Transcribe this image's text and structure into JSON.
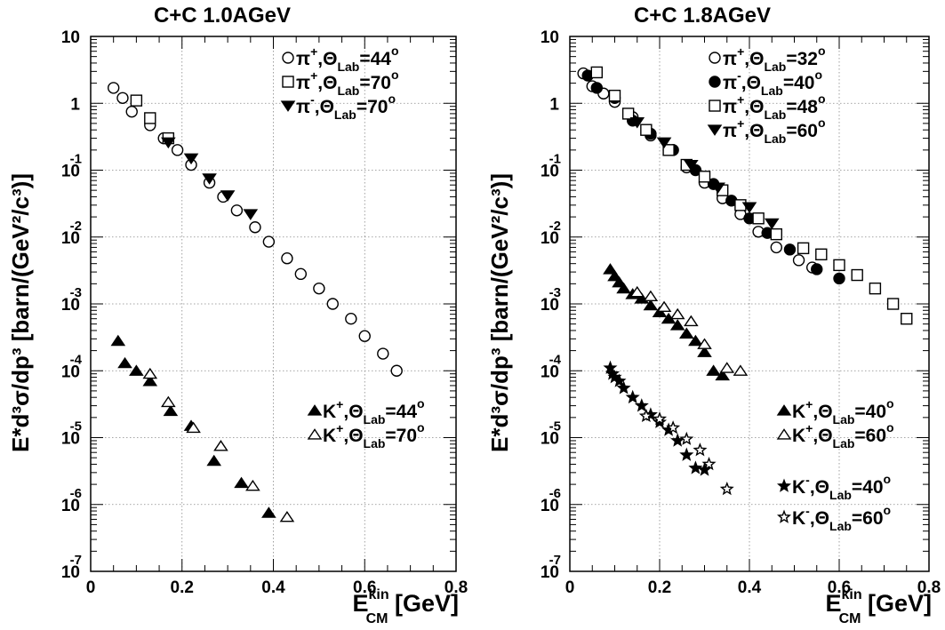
{
  "chart_data": [
    {
      "type": "scatter",
      "title": "C+C 1.0AGeV",
      "xlabel": "E",
      "xlabel_sup": "kin",
      "xlabel_sub": "CM",
      "xlabel_unit": "[GeV]",
      "ylabel": "E*d³σ/dp³ [barn/(GeV²/c³)]",
      "xlim": [
        0,
        0.8
      ],
      "ylim_log10": [
        -7,
        1
      ],
      "yscale": "log",
      "grid": true,
      "x_ticks": [
        "0",
        "0.2",
        "0.4",
        "0.6",
        "0.8"
      ],
      "y_ticks": [
        {
          "base": "10",
          "exp": "-7"
        },
        {
          "base": "10",
          "exp": "-6"
        },
        {
          "base": "10",
          "exp": "-5"
        },
        {
          "base": "10",
          "exp": "-4"
        },
        {
          "base": "10",
          "exp": "-3"
        },
        {
          "base": "10",
          "exp": "-2"
        },
        {
          "base": "10",
          "exp": "-1"
        },
        {
          "base": "1",
          "exp": ""
        },
        {
          "base": "10",
          "exp": ""
        }
      ],
      "series": [
        {
          "name": "π⁺,Θ_Lab=44°",
          "label": {
            "p": "π",
            "sup": "+",
            "sub": "Lab",
            "angle": "=44"
          },
          "marker": "circle-open",
          "x": [
            0.05,
            0.07,
            0.09,
            0.13,
            0.16,
            0.19,
            0.22,
            0.26,
            0.29,
            0.32,
            0.36,
            0.39,
            0.43,
            0.46,
            0.5,
            0.53,
            0.57,
            0.6,
            0.64,
            0.67
          ],
          "y": [
            1.7,
            1.2,
            0.75,
            0.47,
            0.3,
            0.2,
            0.12,
            0.065,
            0.04,
            0.025,
            0.014,
            0.0085,
            0.0048,
            0.0028,
            0.0017,
            0.001,
            0.0006,
            0.00033,
            0.00018,
            0.0001
          ]
        },
        {
          "name": "π⁺,Θ_Lab=70°",
          "label": {
            "p": "π",
            "sup": "+",
            "sub": "Lab",
            "angle": "=70"
          },
          "marker": "square-open",
          "x": [
            0.1,
            0.13,
            0.17
          ],
          "y": [
            1.1,
            0.6,
            0.3
          ]
        },
        {
          "name": "π⁻,Θ_Lab=70°",
          "label": {
            "p": "π",
            "sup": "-",
            "sub": "Lab",
            "angle": "=70"
          },
          "marker": "triangle-down-filled",
          "x": [
            0.17,
            0.22,
            0.26,
            0.3,
            0.35
          ],
          "y": [
            0.26,
            0.15,
            0.075,
            0.042,
            0.022
          ]
        },
        {
          "name": "K⁺,Θ_Lab=44°",
          "label": {
            "p": "K",
            "sup": "+",
            "sub": "Lab",
            "angle": "=44"
          },
          "marker": "triangle-up-filled",
          "x": [
            0.06,
            0.075,
            0.1,
            0.13,
            0.175,
            0.22,
            0.27,
            0.33,
            0.39
          ],
          "y": [
            0.00028,
            0.00013,
            0.0001,
            7e-05,
            2.5e-05,
            1.5e-05,
            4.5e-06,
            2.1e-06,
            7.5e-07
          ]
        },
        {
          "name": "K⁺,Θ_Lab=70°",
          "label": {
            "p": "K",
            "sup": "+",
            "sub": "Lab",
            "angle": "=70"
          },
          "marker": "triangle-up-open",
          "x": [
            0.13,
            0.17,
            0.225,
            0.285,
            0.355,
            0.43
          ],
          "y": [
            9e-05,
            3.4e-05,
            1.4e-05,
            7.5e-06,
            1.9e-06,
            6.5e-07
          ]
        }
      ]
    },
    {
      "type": "scatter",
      "title": "C+C 1.8AGeV",
      "xlabel": "E",
      "xlabel_sup": "kin",
      "xlabel_sub": "CM",
      "xlabel_unit": "[GeV]",
      "ylabel": "E*d³σ/dp³ [barn/(GeV²/c³)]",
      "xlim": [
        0,
        0.8
      ],
      "ylim_log10": [
        -7,
        1
      ],
      "yscale": "log",
      "grid": true,
      "x_ticks": [
        "0",
        "0.2",
        "0.4",
        "0.6",
        "0.8"
      ],
      "y_ticks": [
        {
          "base": "10",
          "exp": "-7"
        },
        {
          "base": "10",
          "exp": "-6"
        },
        {
          "base": "10",
          "exp": "-5"
        },
        {
          "base": "10",
          "exp": "-4"
        },
        {
          "base": "10",
          "exp": "-3"
        },
        {
          "base": "10",
          "exp": "-2"
        },
        {
          "base": "10",
          "exp": "-1"
        },
        {
          "base": "1",
          "exp": ""
        },
        {
          "base": "10",
          "exp": ""
        }
      ],
      "series": [
        {
          "name": "π⁺,Θ_Lab=32°",
          "label": {
            "p": "π",
            "sup": "+",
            "sub": "Lab",
            "angle": "=32"
          },
          "marker": "circle-open",
          "x": [
            0.03,
            0.05,
            0.075,
            0.1,
            0.14,
            0.18,
            0.22,
            0.26,
            0.3,
            0.34,
            0.38,
            0.42,
            0.46,
            0.51,
            0.54
          ],
          "y": [
            2.8,
            1.8,
            1.4,
            1.05,
            0.62,
            0.33,
            0.2,
            0.11,
            0.065,
            0.038,
            0.022,
            0.012,
            0.007,
            0.0045,
            0.0035
          ]
        },
        {
          "name": "π⁻,Θ_Lab=40°",
          "label": {
            "p": "π",
            "sup": "-",
            "sub": "Lab",
            "angle": "=40"
          },
          "marker": "circle-filled",
          "x": [
            0.04,
            0.06,
            0.1,
            0.14,
            0.18,
            0.23,
            0.28,
            0.32,
            0.36,
            0.4,
            0.44,
            0.49,
            0.55,
            0.6
          ],
          "y": [
            2.6,
            1.7,
            1.2,
            0.55,
            0.35,
            0.2,
            0.1,
            0.062,
            0.035,
            0.019,
            0.0115,
            0.0065,
            0.0033,
            0.0024
          ]
        },
        {
          "name": "π⁺,Θ_Lab=48°",
          "label": {
            "p": "π",
            "sup": "+",
            "sub": "Lab",
            "angle": "=48"
          },
          "marker": "square-open",
          "x": [
            0.06,
            0.1,
            0.13,
            0.17,
            0.22,
            0.26,
            0.3,
            0.34,
            0.38,
            0.42,
            0.46,
            0.52,
            0.56,
            0.6,
            0.64,
            0.68,
            0.72,
            0.75
          ],
          "y": [
            2.9,
            1.3,
            0.7,
            0.4,
            0.2,
            0.12,
            0.08,
            0.05,
            0.03,
            0.019,
            0.011,
            0.0068,
            0.0055,
            0.0038,
            0.0027,
            0.0017,
            0.001,
            0.0006
          ]
        },
        {
          "name": "π⁺,Θ_Lab=60°",
          "label": {
            "p": "π",
            "sup": "+",
            "sub": "Lab",
            "angle": "=60"
          },
          "marker": "triangle-down-filled",
          "x": [
            0.15,
            0.21,
            0.27,
            0.33,
            0.4,
            0.45
          ],
          "y": [
            0.52,
            0.26,
            0.12,
            0.055,
            0.028,
            0.016
          ]
        },
        {
          "name": "K⁺,Θ_Lab=40°",
          "label": {
            "p": "K",
            "sup": "+",
            "sub": "Lab",
            "angle": "=40"
          },
          "marker": "triangle-up-filled",
          "x": [
            0.09,
            0.1,
            0.11,
            0.12,
            0.14,
            0.16,
            0.18,
            0.2,
            0.22,
            0.24,
            0.26,
            0.28,
            0.3,
            0.32,
            0.34
          ],
          "y": [
            0.0033,
            0.0026,
            0.0021,
            0.0017,
            0.0014,
            0.0012,
            0.00095,
            0.00075,
            0.0006,
            0.00048,
            0.00036,
            0.00028,
            0.00019,
            0.0001,
            8.5e-05
          ]
        },
        {
          "name": "K⁺,Θ_Lab=60°",
          "label": {
            "p": "K",
            "sup": "+",
            "sub": "Lab",
            "angle": "=60"
          },
          "marker": "triangle-up-open",
          "x": [
            0.15,
            0.18,
            0.21,
            0.24,
            0.27,
            0.3,
            0.35,
            0.38
          ],
          "y": [
            0.0015,
            0.0013,
            0.0009,
            0.0007,
            0.00055,
            0.00025,
            0.00011,
            0.0001
          ]
        },
        {
          "name": "K⁻,Θ_Lab=40°",
          "label": {
            "p": "K",
            "sup": "-",
            "sub": "Lab",
            "angle": "=40"
          },
          "marker": "star-filled",
          "x": [
            0.09,
            0.095,
            0.1,
            0.11,
            0.12,
            0.14,
            0.16,
            0.18,
            0.2,
            0.22,
            0.24,
            0.26,
            0.28,
            0.3
          ],
          "y": [
            0.00011,
            9e-05,
            8e-05,
            7e-05,
            5.5e-05,
            4e-05,
            3e-05,
            2.2e-05,
            1.7e-05,
            1.3e-05,
            9e-06,
            5.5e-06,
            3.5e-06,
            3.3e-06
          ]
        },
        {
          "name": "K⁻,Θ_Lab=60°",
          "label": {
            "p": "K",
            "sup": "-",
            "sub": "Lab",
            "angle": "=60"
          },
          "marker": "star-open",
          "x": [
            0.17,
            0.2,
            0.23,
            0.26,
            0.29,
            0.31,
            0.35
          ],
          "y": [
            2.1e-05,
            1.9e-05,
            1.4e-05,
            9.5e-06,
            6.5e-06,
            4e-06,
            1.7e-06
          ]
        }
      ]
    }
  ]
}
